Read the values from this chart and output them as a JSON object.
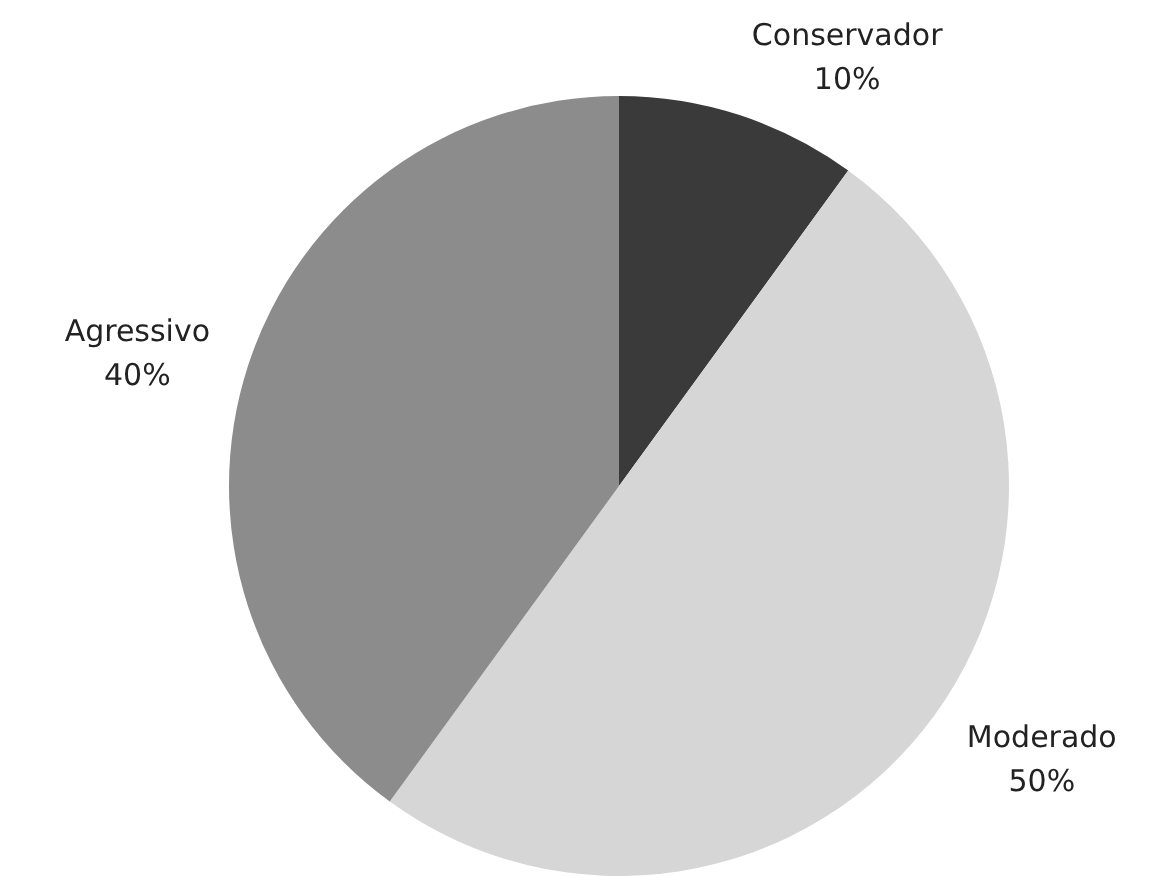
{
  "chart_data": {
    "type": "pie",
    "categories": [
      "Conservador",
      "Moderado",
      "Agressivo"
    ],
    "values": [
      10,
      50,
      40
    ],
    "colors": [
      "#3a3a3a",
      "#d6d6d6",
      "#8c8c8c"
    ],
    "value_labels": [
      "10%",
      "50%",
      "40%"
    ],
    "legend": false
  }
}
